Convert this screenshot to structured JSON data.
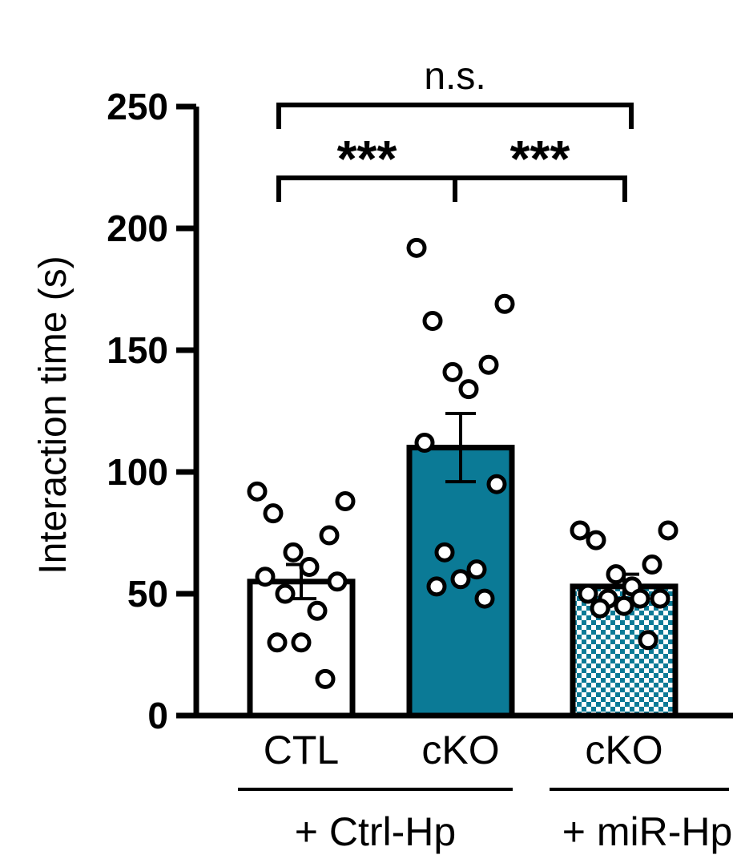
{
  "chart_data": {
    "type": "bar",
    "ylabel": "Interaction time (s)",
    "xlabel": "",
    "ylim": [
      0,
      250
    ],
    "yticks": [
      0,
      50,
      100,
      150,
      200,
      250
    ],
    "categories": [
      "CTL",
      "cKO",
      "cKO"
    ],
    "groups": [
      {
        "label": "+ Ctrl-Hp",
        "categories": [
          0,
          1
        ]
      },
      {
        "label": "+ miR-Hp",
        "categories": [
          2
        ]
      }
    ],
    "series": [
      {
        "values": [
          55,
          110,
          53
        ],
        "error": [
          7,
          14,
          5
        ],
        "fills": [
          "#ffffff",
          "#0b7a96",
          "checker"
        ],
        "points": [
          [
            92,
            88,
            83,
            74,
            67,
            61,
            57,
            55,
            50,
            43,
            30,
            30,
            15
          ],
          [
            192,
            169,
            162,
            144,
            141,
            134,
            112,
            95,
            67,
            60,
            56,
            53,
            48
          ],
          [
            76,
            76,
            72,
            62,
            58,
            53,
            50,
            48,
            48,
            48,
            45,
            44,
            31
          ]
        ]
      }
    ],
    "significance": [
      {
        "from": 0,
        "to": 2,
        "label": "n.s.",
        "level": 250
      },
      {
        "from": 0,
        "to": 1,
        "label": "***",
        "level": 220
      },
      {
        "from": 1,
        "to": 2,
        "label": "***",
        "level": 220
      }
    ],
    "colors": {
      "bar_dark": "#0b7a96",
      "checker": "#0b7a96",
      "axis": "#000000"
    }
  }
}
